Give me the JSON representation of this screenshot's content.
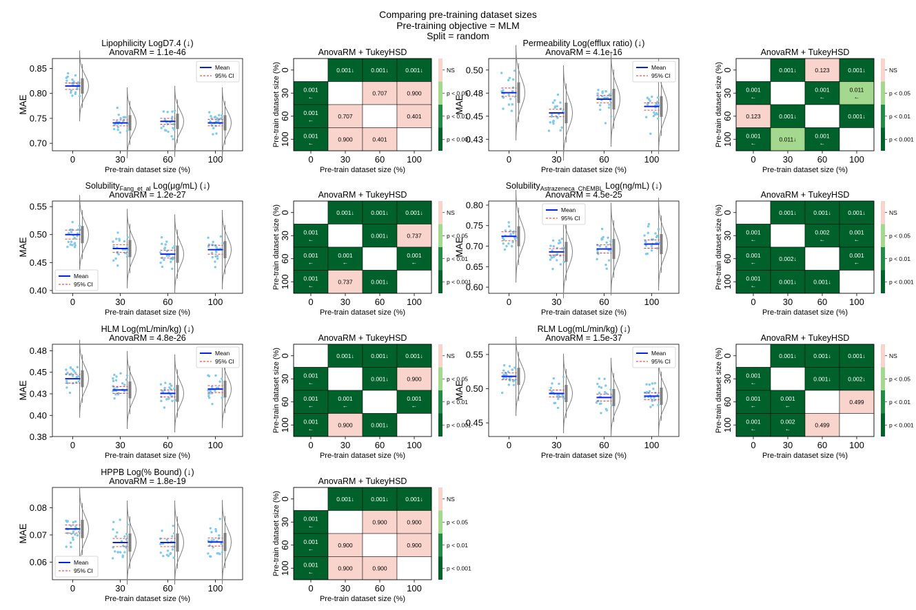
{
  "suptitle": [
    "Comparing pre-training dataset sizes",
    "Pre-training objective =  MLM",
    "Split = random"
  ],
  "x_categories": [
    "0",
    "30",
    "60",
    "100"
  ],
  "x_label": "Pre-train dataset size (%)",
  "y_label": "MAE",
  "heatmap_y_label": "Pre-train dataset size (%)",
  "heatmap_title": "AnovaRM + TukeyHSD",
  "legend": {
    "mean": "Mean",
    "ci": "95% CI"
  },
  "colorbar_labels": [
    "NS",
    "p < 0.05",
    "p < 0.01",
    "p < 0.001"
  ],
  "colors": {
    "ns": "#f9d4cd",
    "p05": "#a5d88f",
    "p01": "#238b45",
    "p001": "#00622a",
    "point": "#7ec9ec",
    "mean": "#0a1fe8",
    "ci": "#e8262a",
    "violin": "#808080"
  },
  "chart_data": [
    {
      "type": "violin",
      "title": "Lipophilicity LogD7.4 (↓)",
      "anova": "AnovaRM = 1.1e-46",
      "ylim": [
        0.685,
        0.87
      ],
      "yticks": [
        "0.70",
        "0.75",
        "0.80",
        "0.85"
      ],
      "ytick_values": [
        0.7,
        0.75,
        0.8,
        0.85
      ],
      "means": [
        0.815,
        0.741,
        0.744,
        0.741
      ],
      "ci": [
        [
          0.808,
          0.821
        ],
        [
          0.735,
          0.747
        ],
        [
          0.738,
          0.75
        ],
        [
          0.735,
          0.748
        ]
      ],
      "spread": 0.022,
      "legend_pos": "top-right",
      "heatmap": [
        [
          "",
          "0.001↓",
          "0.001↓",
          "0.001↓"
        ],
        [
          "0.001\n←",
          "",
          "0.707",
          "0.900"
        ],
        [
          "0.001\n←",
          "0.707",
          "",
          "0.401"
        ],
        [
          "0.001\n←",
          "0.900",
          "0.401",
          ""
        ]
      ],
      "heatmap_levels": [
        [
          "",
          "p001",
          "p001",
          "p001"
        ],
        [
          "p001",
          "",
          "ns",
          "ns"
        ],
        [
          "p001",
          "ns",
          "",
          "ns"
        ],
        [
          "p001",
          "ns",
          "ns",
          ""
        ]
      ]
    },
    {
      "type": "violin",
      "title": "Permeability Log(efflux ratio) (↓)",
      "anova": "AnovaRM = 4.1e-16",
      "ylim": [
        0.415,
        0.515
      ],
      "yticks": [
        "0.43",
        "0.45",
        "0.48",
        "0.50"
      ],
      "ytick_values": [
        0.4275,
        0.4525,
        0.4775,
        0.5025
      ],
      "means": [
        0.478,
        0.456,
        0.471,
        0.463
      ],
      "ci": [
        [
          0.474,
          0.483
        ],
        [
          0.452,
          0.46
        ],
        [
          0.467,
          0.475
        ],
        [
          0.459,
          0.467
        ]
      ],
      "spread": 0.016,
      "legend_pos": "top-right",
      "heatmap": [
        [
          "",
          "0.001↓",
          "0.123",
          "0.001↓"
        ],
        [
          "0.001\n←",
          "",
          "0.001\n←",
          "0.011\n←"
        ],
        [
          "0.123",
          "0.001↓",
          "",
          "0.001↓"
        ],
        [
          "0.001\n←",
          "0.011↓",
          "0.001\n←",
          ""
        ]
      ],
      "heatmap_levels": [
        [
          "",
          "p001",
          "ns",
          "p001"
        ],
        [
          "p001",
          "",
          "p001",
          "p05"
        ],
        [
          "ns",
          "p001",
          "",
          "p001"
        ],
        [
          "p001",
          "p05",
          "p001",
          ""
        ]
      ]
    },
    {
      "type": "violin",
      "title": "Solubility",
      "title_sub": "Fang_et_al",
      "title_rest": " Log(μg/mL) (↓)",
      "anova": "AnovaRM = 1.2e-27",
      "ylim": [
        0.395,
        0.56
      ],
      "yticks": [
        "0.40",
        "0.45",
        "0.50",
        "0.55"
      ],
      "ytick_values": [
        0.4,
        0.45,
        0.5,
        0.55
      ],
      "means": [
        0.5,
        0.475,
        0.465,
        0.473
      ],
      "ci": [
        [
          0.492,
          0.508
        ],
        [
          0.468,
          0.482
        ],
        [
          0.458,
          0.472
        ],
        [
          0.465,
          0.481
        ]
      ],
      "spread": 0.022,
      "legend_pos": "bottom-left",
      "heatmap": [
        [
          "",
          "0.001↓",
          "0.001↓",
          "0.001↓"
        ],
        [
          "0.001\n←",
          "",
          "0.001↓",
          "0.737"
        ],
        [
          "0.001\n←",
          "0.001\n←",
          "",
          "0.001\n←"
        ],
        [
          "0.001\n←",
          "0.737",
          "0.001↓",
          ""
        ]
      ],
      "heatmap_levels": [
        [
          "",
          "p001",
          "p001",
          "p001"
        ],
        [
          "p001",
          "",
          "p001",
          "ns"
        ],
        [
          "p001",
          "p001",
          "",
          "p001"
        ],
        [
          "p001",
          "ns",
          "p001",
          ""
        ]
      ]
    },
    {
      "type": "violin",
      "title": "Solubility",
      "title_sub": "Astrazeneca_ChEMBL",
      "title_rest": " Log(ng/mL) (↓)",
      "anova": "AnovaRM = 4.5e-25",
      "ylim": [
        0.585,
        0.81
      ],
      "yticks": [
        "0.60",
        "0.65",
        "0.70",
        "0.75",
        "0.80"
      ],
      "ytick_values": [
        0.6,
        0.65,
        0.7,
        0.75,
        0.8
      ],
      "means": [
        0.724,
        0.686,
        0.693,
        0.705
      ],
      "ci": [
        [
          0.713,
          0.735
        ],
        [
          0.678,
          0.694
        ],
        [
          0.683,
          0.703
        ],
        [
          0.695,
          0.715
        ]
      ],
      "spread": 0.035,
      "legend_pos": "top-center",
      "heatmap": [
        [
          "",
          "0.001↓",
          "0.001↓",
          "0.001↓"
        ],
        [
          "0.001\n←",
          "",
          "0.002\n←",
          "0.001\n←"
        ],
        [
          "0.001\n←",
          "0.002↓",
          "",
          "0.001\n←"
        ],
        [
          "0.001\n←",
          "0.001↓",
          "0.001↓",
          ""
        ]
      ],
      "heatmap_levels": [
        [
          "",
          "p001",
          "p001",
          "p001"
        ],
        [
          "p001",
          "",
          "p001",
          "p001"
        ],
        [
          "p001",
          "p001",
          "",
          "p001"
        ],
        [
          "p001",
          "p001",
          "p001",
          ""
        ]
      ]
    },
    {
      "type": "violin",
      "title": "HLM Log(mL/min/kg) (↓)",
      "anova": "AnovaRM = 4.8e-26",
      "ylim": [
        0.378,
        0.485
      ],
      "yticks": [
        "0.38",
        "0.40",
        "0.43",
        "0.45",
        "0.48"
      ],
      "ytick_values": [
        0.3775,
        0.4025,
        0.4275,
        0.4525,
        0.4775
      ],
      "means": [
        0.445,
        0.432,
        0.428,
        0.433
      ],
      "ci": [
        [
          0.44,
          0.45
        ],
        [
          0.428,
          0.436
        ],
        [
          0.424,
          0.432
        ],
        [
          0.429,
          0.437
        ]
      ],
      "spread": 0.014,
      "legend_pos": "top-right",
      "heatmap": [
        [
          "",
          "0.001↓",
          "0.001↓",
          "0.001↓"
        ],
        [
          "0.001\n←",
          "",
          "0.001↓",
          "0.900"
        ],
        [
          "0.001\n←",
          "0.001\n←",
          "",
          "0.001\n←"
        ],
        [
          "0.001\n←",
          "0.900",
          "0.001↓",
          ""
        ]
      ],
      "heatmap_levels": [
        [
          "",
          "p001",
          "p001",
          "p001"
        ],
        [
          "p001",
          "",
          "p001",
          "ns"
        ],
        [
          "p001",
          "p001",
          "",
          "p001"
        ],
        [
          "p001",
          "ns",
          "p001",
          ""
        ]
      ]
    },
    {
      "type": "violin",
      "title": "RLM Log(mL/min/kg) (↓)",
      "anova": "AnovaRM = 1.5e-37",
      "ylim": [
        0.43,
        0.565
      ],
      "yticks": [
        "0.45",
        "0.50",
        "0.55"
      ],
      "ytick_values": [
        0.45,
        0.5,
        0.55
      ],
      "means": [
        0.518,
        0.493,
        0.487,
        0.489
      ],
      "ci": [
        [
          0.513,
          0.523
        ],
        [
          0.488,
          0.498
        ],
        [
          0.482,
          0.492
        ],
        [
          0.484,
          0.494
        ]
      ],
      "spread": 0.018,
      "legend_pos": "top-right",
      "heatmap": [
        [
          "",
          "0.001↓",
          "0.001↓",
          "0.001↓"
        ],
        [
          "0.001\n←",
          "",
          "0.001↓",
          "0.002↓"
        ],
        [
          "0.001\n←",
          "0.001\n←",
          "",
          "0.499"
        ],
        [
          "0.001\n←",
          "0.002\n←",
          "0.499",
          ""
        ]
      ],
      "heatmap_levels": [
        [
          "",
          "p001",
          "p001",
          "p001"
        ],
        [
          "p001",
          "",
          "p001",
          "p001"
        ],
        [
          "p001",
          "p001",
          "",
          "ns"
        ],
        [
          "p001",
          "p001",
          "ns",
          ""
        ]
      ]
    },
    {
      "type": "violin",
      "title": "HPPB Log(% Bound) (↓)",
      "anova": "AnovaRM = 1.8e-19",
      "ylim": [
        0.0535,
        0.0875
      ],
      "yticks": [
        "0.06",
        "0.07",
        "0.08"
      ],
      "ytick_values": [
        0.06,
        0.07,
        0.08
      ],
      "means": [
        0.0722,
        0.0672,
        0.0672,
        0.0674
      ],
      "ci": [
        [
          0.0707,
          0.0737
        ],
        [
          0.0657,
          0.0687
        ],
        [
          0.0657,
          0.0687
        ],
        [
          0.0659,
          0.0689
        ]
      ],
      "spread": 0.0048,
      "legend_pos": "bottom-left",
      "heatmap": [
        [
          "",
          "0.001↓",
          "0.001↓",
          "0.001↓"
        ],
        [
          "0.001\n←",
          "",
          "0.900",
          "0.900"
        ],
        [
          "0.001\n←",
          "0.900",
          "",
          "0.900"
        ],
        [
          "0.001\n←",
          "0.900",
          "0.900",
          ""
        ]
      ],
      "heatmap_levels": [
        [
          "",
          "p001",
          "p001",
          "p001"
        ],
        [
          "p001",
          "",
          "ns",
          "ns"
        ],
        [
          "p001",
          "ns",
          "",
          "ns"
        ],
        [
          "p001",
          "ns",
          "ns",
          ""
        ]
      ]
    }
  ]
}
